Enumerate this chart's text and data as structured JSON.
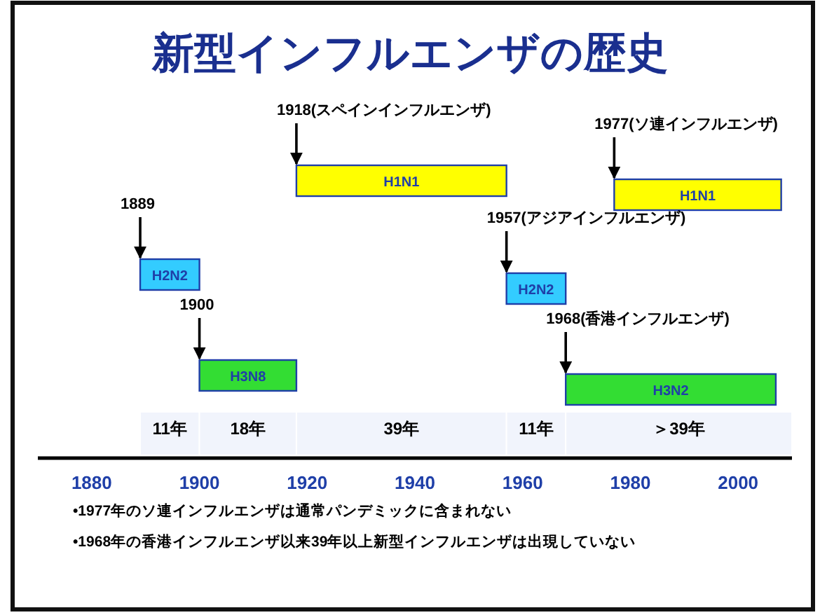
{
  "chart_data": {
    "type": "bar",
    "orientation": "horizontal",
    "title": "新型インフルエンザの歴史",
    "categories": [
      null,
      null,
      null
    ],
    "series": [
      {
        "base": [
          1918,
          1889,
          1900
        ],
        "values": [
          39,
          11,
          18
        ],
        "colors": [
          "#ffff00",
          "#33ccff",
          "#33dd33"
        ],
        "value_labels": [
          "H1N1",
          "H2N2",
          "H3N8"
        ]
      },
      {
        "base": [
          1977,
          1957,
          1968
        ],
        "values": [
          31,
          11,
          39
        ],
        "colors": [
          "#ffff00",
          "#33ccff",
          "#33dd33"
        ],
        "value_labels": [
          "H1N1",
          "H2N2",
          "H3N2"
        ]
      }
    ],
    "xlim": [
      1870,
      2010
    ],
    "xticks": [
      1880,
      1900,
      1920,
      1940,
      1960,
      1980,
      2000
    ],
    "tick_labels": "x",
    "bands": [
      {
        "axis": "x",
        "from": 1889,
        "to": 1900,
        "label": "11年"
      },
      {
        "axis": "x",
        "from": 1900,
        "to": 1918,
        "label": "18年"
      },
      {
        "axis": "x",
        "from": 1918,
        "to": 1957,
        "label": "39年"
      },
      {
        "axis": "x",
        "from": 1957,
        "to": 1968,
        "label": "11年"
      },
      {
        "axis": "x",
        "from": 1968,
        "to": 2010,
        "label": "＞39年"
      }
    ],
    "annotations": [
      "1918(スペインインフルエンザ)",
      "1889",
      "1900",
      "1977(ソ連インフルエンザ)",
      "1957(アジアインフルエンザ)",
      "1968(香港インフルエンザ)",
      "•1977年のソ連インフルエンザは通常パンデミックに含まれない",
      "•1968年の香港インフルエンザ以来39年以上新型インフルエンザは出現していない"
    ]
  }
}
